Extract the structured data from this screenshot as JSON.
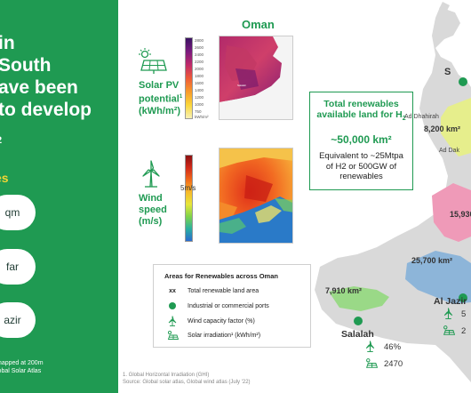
{
  "left_panel": {
    "title_lines": [
      "in",
      "South",
      "ave been",
      "to develop"
    ],
    "subtitle": "2",
    "section_heading": "es",
    "pills": [
      "qm",
      "far",
      "azir"
    ],
    "note_lines": [
      "mapped at 200m",
      "lobal Solar Atlas"
    ]
  },
  "middle": {
    "oman_title": "Oman",
    "solar_label": [
      "Solar PV",
      "potential",
      "(kWh/m²)"
    ],
    "solar_label_sup": "1",
    "solar_scale_ticks": [
      "2800",
      "2600",
      "2400",
      "2200",
      "2000",
      "1800",
      "1600",
      "1400",
      "1200",
      "1000",
      "750",
      "kWh/m²"
    ],
    "wind_label": [
      "Wind",
      "speed",
      "(m/s)"
    ],
    "wind_scale_label": "5m/s",
    "info_box": {
      "title_line1": "Total renewables",
      "title_line2": "available land for H",
      "title_sub": "2",
      "value": "~50,000 km²",
      "desc": [
        "Equivalent to ~25Mtpa",
        "of H2 or 500GW of",
        "renewables"
      ]
    },
    "legend": {
      "title": "Areas for Renewables across Oman",
      "rows": [
        {
          "symbol": "xx",
          "label": "Total renewable land area"
        },
        {
          "symbol": "green-dot",
          "label": "Industrial or commercial ports"
        },
        {
          "symbol": "wind-icon",
          "label": "Wind capacity factor (%)"
        },
        {
          "symbol": "solar-icon",
          "label": "Solar irradiation¹ (kWh/m²)"
        }
      ]
    },
    "footnote": [
      "1. Global Horizontal Irradiation (GHI)",
      "Source: Global solar atlas, Global wind atlas (July '22)"
    ]
  },
  "map": {
    "regions": [
      {
        "label": "8,200 km²",
        "color": "#e6ee8c"
      },
      {
        "label": "15,930",
        "color": "#ef9ab8"
      },
      {
        "label": "25,700 km²",
        "color": "#8db5d9"
      },
      {
        "label": "7,910 km²",
        "color": "#9ad987"
      }
    ],
    "cities": [
      "Ad Dhahirah",
      "Ad Dak",
      "S"
    ],
    "salalah": {
      "name": "Salalah",
      "wind_cf": "46%",
      "solar": "2470"
    },
    "al_jazir": {
      "name": "Al Jazir",
      "wind_cf": "5",
      "solar": "2"
    }
  },
  "colors": {
    "brand_green": "#1f9a52",
    "accent_yellow": "#f2d534"
  }
}
